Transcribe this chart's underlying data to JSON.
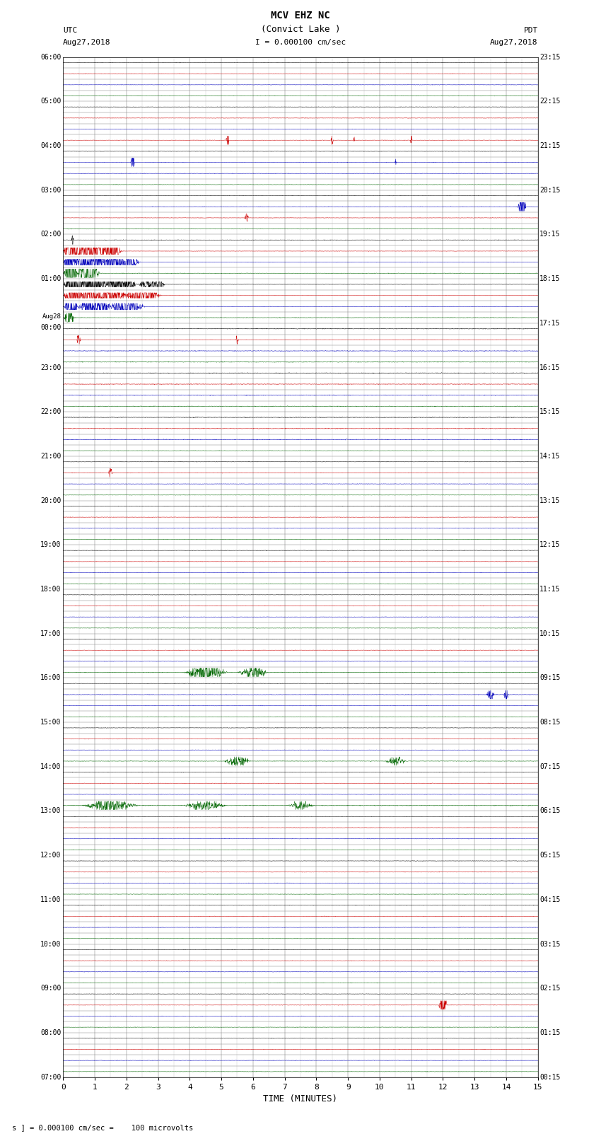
{
  "title_line1": "MCV EHZ NC",
  "title_line2": "(Convict Lake )",
  "scale_text": "I = 0.000100 cm/sec",
  "left_label_line1": "UTC",
  "left_label_line2": "Aug27,2018",
  "right_label_line1": "PDT",
  "right_label_line2": "Aug27,2018",
  "bottom_label": "TIME (MINUTES)",
  "footnote": "s ] = 0.000100 cm/sec =    100 microvolts",
  "left_times": [
    "07:00",
    "",
    "",
    "",
    "08:00",
    "",
    "",
    "",
    "09:00",
    "",
    "",
    "",
    "10:00",
    "",
    "",
    "",
    "11:00",
    "",
    "",
    "",
    "12:00",
    "",
    "",
    "",
    "13:00",
    "",
    "",
    "",
    "14:00",
    "",
    "",
    "",
    "15:00",
    "",
    "",
    "",
    "16:00",
    "",
    "",
    "",
    "17:00",
    "",
    "",
    "",
    "18:00",
    "",
    "",
    "",
    "19:00",
    "",
    "",
    "",
    "20:00",
    "",
    "",
    "",
    "21:00",
    "",
    "",
    "",
    "22:00",
    "",
    "",
    "",
    "23:00",
    "",
    "",
    "",
    "Aug28\n00:00",
    "",
    "",
    "",
    "01:00",
    "",
    "",
    "",
    "02:00",
    "",
    "",
    "",
    "03:00",
    "",
    "",
    "",
    "04:00",
    "",
    "",
    "",
    "05:00",
    "",
    "",
    "",
    "06:00",
    "",
    "",
    ""
  ],
  "right_times": [
    "00:15",
    "",
    "",
    "",
    "01:15",
    "",
    "",
    "",
    "02:15",
    "",
    "",
    "",
    "03:15",
    "",
    "",
    "",
    "04:15",
    "",
    "",
    "",
    "05:15",
    "",
    "",
    "",
    "06:15",
    "",
    "",
    "",
    "07:15",
    "",
    "",
    "",
    "08:15",
    "",
    "",
    "",
    "09:15",
    "",
    "",
    "",
    "10:15",
    "",
    "",
    "",
    "11:15",
    "",
    "",
    "",
    "12:15",
    "",
    "",
    "",
    "13:15",
    "",
    "",
    "",
    "14:15",
    "",
    "",
    "",
    "15:15",
    "",
    "",
    "",
    "16:15",
    "",
    "",
    "",
    "17:15",
    "",
    "",
    "",
    "18:15",
    "",
    "",
    "",
    "19:15",
    "",
    "",
    "",
    "20:15",
    "",
    "",
    "",
    "21:15",
    "",
    "",
    "",
    "22:15",
    "",
    "",
    "",
    "23:15",
    "",
    "",
    ""
  ],
  "n_rows": 92,
  "bg_color": "#ffffff",
  "fig_width": 8.5,
  "fig_height": 16.13,
  "dpi": 100
}
